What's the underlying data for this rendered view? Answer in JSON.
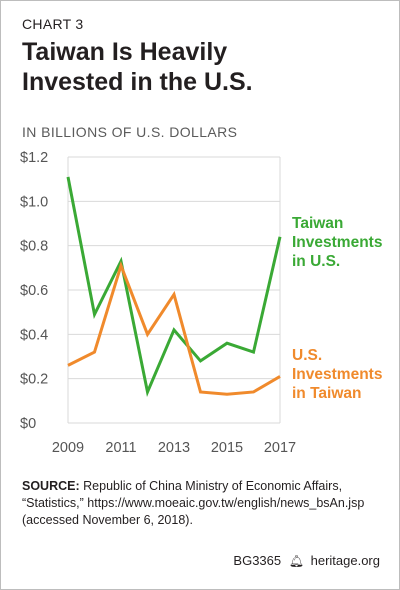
{
  "header": {
    "chart_number": "CHART 3",
    "title_line1": "Taiwan Is Heavily",
    "title_line2": "Invested in the U.S.",
    "subtitle": "IN BILLIONS OF U.S. DOLLARS"
  },
  "footer": {
    "source_label": "SOURCE:",
    "source_text": "Republic of China Ministry of Economic Affairs, “Statistics,” https://www.moeaic.gov.tw/english/news_bsAn.jsp (accessed November 6, 2018).",
    "code": "BG3365",
    "site": "heritage.org",
    "bell_icon": "liberty-bell-icon"
  },
  "colors": {
    "taiwan_in_us": "#3aa935",
    "us_in_taiwan": "#f08a2c",
    "grid": "#d9d9d9",
    "axis_text": "#555555"
  },
  "chart_data": {
    "type": "line",
    "title": "Taiwan Is Heavily Invested in the U.S.",
    "ylabel": "IN BILLIONS OF U.S. DOLLARS",
    "xlabel": "",
    "x": [
      2009,
      2010,
      2011,
      2012,
      2013,
      2014,
      2015,
      2016,
      2017
    ],
    "xticks": [
      "2009",
      "2011",
      "2013",
      "2015",
      "2017"
    ],
    "yticks": [
      "$0",
      "$0.2",
      "$0.4",
      "$0.6",
      "$0.8",
      "$1.0",
      "$1.2"
    ],
    "ylim": [
      0,
      1.2
    ],
    "grid": "horizontal",
    "series": [
      {
        "name_line1": "Taiwan",
        "name_line2": "Investments",
        "name_line3": "in U.S.",
        "color": "#3aa935",
        "values": [
          1.11,
          0.49,
          0.73,
          0.14,
          0.42,
          0.28,
          0.36,
          0.32,
          0.84
        ]
      },
      {
        "name_line1": "U.S.",
        "name_line2": "Investments",
        "name_line3": "in Taiwan",
        "color": "#f08a2c",
        "values": [
          0.26,
          0.32,
          0.71,
          0.4,
          0.58,
          0.14,
          0.13,
          0.14,
          0.21
        ]
      }
    ]
  }
}
